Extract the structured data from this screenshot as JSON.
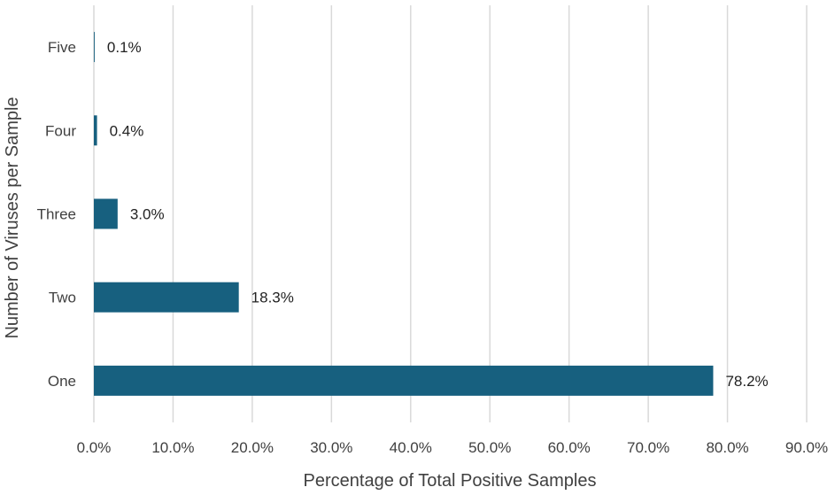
{
  "chart_data": {
    "type": "bar",
    "orientation": "horizontal",
    "categories": [
      "One",
      "Two",
      "Three",
      "Four",
      "Five"
    ],
    "values": [
      78.2,
      18.3,
      3.0,
      0.4,
      0.1
    ],
    "data_labels": [
      "78.2%",
      "18.3%",
      "3.0%",
      "0.4%",
      "0.1%"
    ],
    "xlabel": "Percentage of Total Positive Samples",
    "ylabel": "Number of Viruses per Sample",
    "xlim": [
      0,
      90
    ],
    "x_ticks": [
      0,
      10,
      20,
      30,
      40,
      50,
      60,
      70,
      80,
      90
    ],
    "x_tick_labels": [
      "0.0%",
      "10.0%",
      "20.0%",
      "30.0%",
      "40.0%",
      "50.0%",
      "60.0%",
      "70.0%",
      "80.0%",
      "90.0%"
    ],
    "grid": "vertical",
    "legend": "none",
    "bar_color": "#17607f",
    "grid_color": "#d9d9d9"
  }
}
